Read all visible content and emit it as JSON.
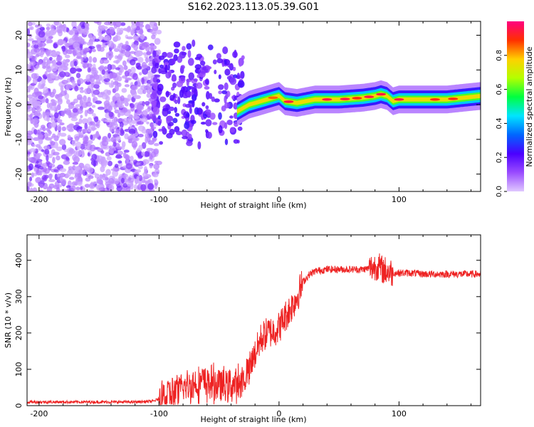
{
  "title": "S162.2023.113.05.39.G01",
  "chart_data": [
    {
      "type": "heatmap",
      "xlabel": "Height of straight line (km)",
      "ylabel": "Frequency (Hz)",
      "xlim": [
        -210,
        168
      ],
      "ylim": [
        -25,
        24
      ],
      "x_ticks": [
        -200,
        -100,
        0,
        100
      ],
      "y_ticks": [
        -20,
        -10,
        0,
        10,
        20
      ],
      "colorbar": {
        "label": "Normalized spectral amplitude",
        "range": [
          0.0,
          1.0
        ],
        "ticks": [
          0.0,
          0.2,
          0.4,
          0.6,
          0.8
        ],
        "colormap": [
          "#e0c8ff",
          "#9a4cff",
          "#4a00ff",
          "#0066ff",
          "#00e5ff",
          "#00ff40",
          "#b4ff00",
          "#ffd000",
          "#ff3000",
          "#ff0080"
        ]
      },
      "ridge": {
        "x": [
          -35,
          -25,
          -15,
          -5,
          0,
          5,
          15,
          30,
          50,
          70,
          80,
          85,
          90,
          95,
          100,
          120,
          140,
          168
        ],
        "frequency": [
          -2,
          0,
          1,
          2,
          2.5,
          1,
          0.5,
          1.5,
          1.5,
          2,
          2.5,
          3,
          2.5,
          1,
          1.5,
          1.5,
          1.5,
          2.5
        ]
      }
    },
    {
      "type": "line",
      "xlabel": "Height of straight line (km)",
      "ylabel": "SNR (10 * v/v)",
      "xlim": [
        -210,
        168
      ],
      "ylim": [
        0,
        470
      ],
      "x_ticks": [
        -200,
        -100,
        0,
        100
      ],
      "y_ticks": [
        0,
        100,
        200,
        300,
        400
      ],
      "color": "#ee2222",
      "series": [
        {
          "x": [
            -210,
            -180,
            -150,
            -120,
            -105,
            -95,
            -85,
            -75,
            -65,
            -55,
            -45,
            -35,
            -30,
            -25,
            -20,
            -15,
            -10,
            -5,
            0,
            5,
            10,
            15,
            20,
            25,
            30,
            40,
            50,
            60,
            70,
            78,
            82,
            86,
            90,
            95,
            100,
            110,
            120,
            130,
            140,
            150,
            160,
            168
          ],
          "values": [
            10,
            10,
            10,
            10,
            12,
            25,
            40,
            55,
            65,
            60,
            55,
            60,
            70,
            95,
            140,
            185,
            200,
            205,
            215,
            245,
            270,
            300,
            340,
            360,
            370,
            375,
            375,
            375,
            375,
            380,
            385,
            375,
            370,
            365,
            365,
            365,
            362,
            362,
            362,
            362,
            362,
            362
          ]
        }
      ]
    }
  ]
}
